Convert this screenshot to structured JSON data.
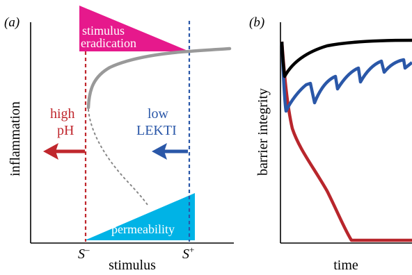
{
  "panel_a": {
    "label": "(a)",
    "ylabel": "inflammation",
    "xlabel": "stimulus",
    "s_minus": {
      "base": "S",
      "sup": "–"
    },
    "s_plus": {
      "base": "S",
      "sup": "+"
    },
    "top_banner": {
      "line1": "stimulus",
      "line2": "eradication",
      "color": "#e6198c"
    },
    "bottom_banner": {
      "text": "permeability",
      "color": "#00b3e6"
    },
    "left_arrow": {
      "line1": "high",
      "line2": "pH",
      "color": "#c0272d"
    },
    "right_arrow": {
      "line1": "low",
      "line2": "LEKTI",
      "color": "#2a57a8"
    },
    "stable_branch_color": "#999999",
    "unstable_branch_color": "#999999"
  },
  "panel_b": {
    "label": "(b)",
    "ylabel": "barrier integrity",
    "xlabel": "time",
    "series_colors": {
      "black": "#000000",
      "blue": "#2a57a8",
      "red": "#c0272d"
    }
  }
}
